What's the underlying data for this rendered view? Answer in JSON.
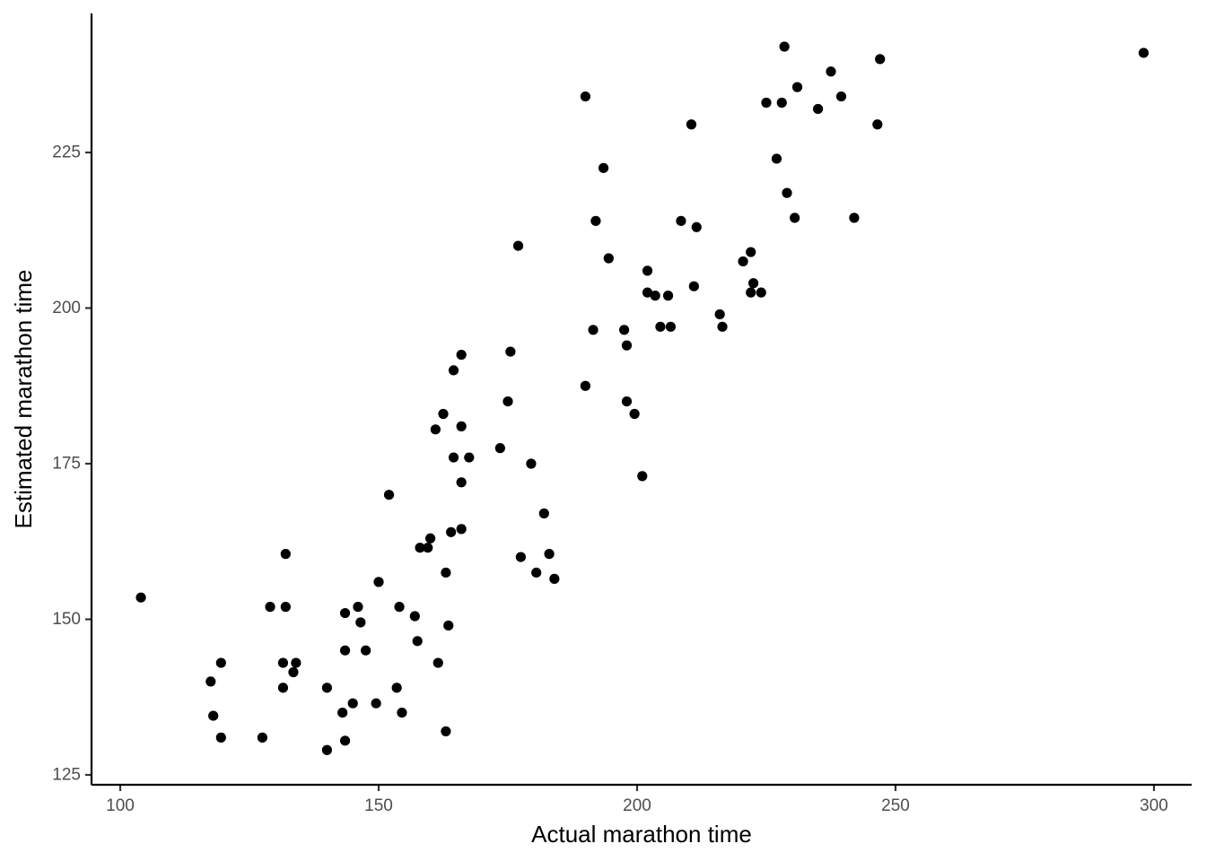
{
  "chart_data": {
    "type": "scatter",
    "title": "",
    "xlabel": "Actual marathon time",
    "ylabel": "Estimated marathon time",
    "xlim": [
      95,
      307
    ],
    "ylim": [
      123,
      247
    ],
    "x_ticks": [
      100,
      150,
      200,
      250,
      300
    ],
    "y_ticks": [
      125,
      150,
      175,
      200,
      225
    ],
    "grid": false,
    "legend": "none",
    "point_color": "#000000",
    "series": [
      {
        "points": [
          [
            104,
            153.5
          ],
          [
            117.5,
            140
          ],
          [
            118,
            134.5
          ],
          [
            119.5,
            131
          ],
          [
            119.5,
            143
          ],
          [
            127.5,
            131
          ],
          [
            129,
            152
          ],
          [
            131.5,
            139
          ],
          [
            131.5,
            143
          ],
          [
            132,
            160.5
          ],
          [
            132,
            152
          ],
          [
            133.5,
            141.5
          ],
          [
            134,
            143
          ],
          [
            140,
            129
          ],
          [
            140,
            139
          ],
          [
            143,
            135
          ],
          [
            143.5,
            151
          ],
          [
            143.5,
            145
          ],
          [
            143.5,
            130.5
          ],
          [
            145,
            136.5
          ],
          [
            146,
            152
          ],
          [
            146.5,
            149.5
          ],
          [
            147.5,
            145
          ],
          [
            149.5,
            136.5
          ],
          [
            150,
            156
          ],
          [
            152,
            170
          ],
          [
            153.5,
            139
          ],
          [
            154,
            152
          ],
          [
            154.5,
            135
          ],
          [
            157,
            150.5
          ],
          [
            157.5,
            146.5
          ],
          [
            158,
            161.5
          ],
          [
            159.5,
            161.5
          ],
          [
            160,
            163
          ],
          [
            161,
            180.5
          ],
          [
            161.5,
            143
          ],
          [
            162.5,
            183
          ],
          [
            163,
            157.5
          ],
          [
            163,
            132
          ],
          [
            163.5,
            149
          ],
          [
            164,
            164
          ],
          [
            164.5,
            176
          ],
          [
            164.5,
            190
          ],
          [
            166,
            192.5
          ],
          [
            166,
            181
          ],
          [
            166,
            172
          ],
          [
            166,
            164.5
          ],
          [
            167.5,
            176
          ],
          [
            173.5,
            177.5
          ],
          [
            175,
            185
          ],
          [
            175.5,
            193
          ],
          [
            177,
            210
          ],
          [
            177.5,
            160
          ],
          [
            179.5,
            175
          ],
          [
            180.5,
            157.5
          ],
          [
            182,
            167
          ],
          [
            183,
            160.5
          ],
          [
            184,
            156.5
          ],
          [
            190,
            234
          ],
          [
            190,
            187.5
          ],
          [
            191.5,
            196.5
          ],
          [
            192,
            214
          ],
          [
            193.5,
            222.5
          ],
          [
            194.5,
            208
          ],
          [
            197.5,
            196.5
          ],
          [
            198,
            194
          ],
          [
            198,
            185
          ],
          [
            199.5,
            183
          ],
          [
            201,
            173
          ],
          [
            202,
            206
          ],
          [
            202,
            202.5
          ],
          [
            203.5,
            202
          ],
          [
            204.5,
            197
          ],
          [
            206,
            202
          ],
          [
            206.5,
            197
          ],
          [
            208.5,
            214
          ],
          [
            210.5,
            229.5
          ],
          [
            211,
            203.5
          ],
          [
            211.5,
            213
          ],
          [
            216,
            199
          ],
          [
            216.5,
            197
          ],
          [
            220.5,
            207.5
          ],
          [
            222,
            209
          ],
          [
            222,
            202.5
          ],
          [
            222.5,
            204
          ],
          [
            224,
            202.5
          ],
          [
            225,
            233
          ],
          [
            227,
            224
          ],
          [
            228,
            233
          ],
          [
            228.5,
            242
          ],
          [
            229,
            218.5
          ],
          [
            230.5,
            214.5
          ],
          [
            231,
            235.5
          ],
          [
            235,
            232
          ],
          [
            237.5,
            238
          ],
          [
            239.5,
            234
          ],
          [
            242,
            214.5
          ],
          [
            246.5,
            229.5
          ],
          [
            247,
            240
          ],
          [
            298,
            241
          ]
        ]
      }
    ]
  }
}
